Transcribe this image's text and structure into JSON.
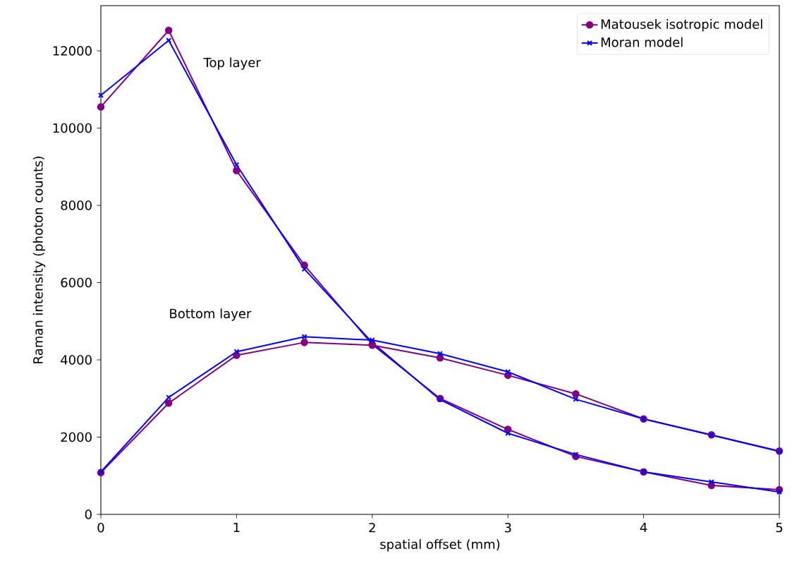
{
  "chart_data": {
    "type": "line",
    "xlabel": "spatial offset (mm)",
    "ylabel": "Raman intensity (photon counts)",
    "x": [
      0,
      0.5,
      1,
      1.5,
      2,
      2.5,
      3,
      3.5,
      4,
      4.5,
      5
    ],
    "series": [
      {
        "name": "Matousek isotropic model",
        "color": "#800080",
        "marker": "circle",
        "values": [
          10550,
          12530,
          8900,
          6450,
          4400,
          3000,
          2200,
          1500,
          1100,
          750,
          640
        ]
      },
      {
        "name": "Moran model",
        "color": "#0000ff",
        "marker": "cross",
        "values": [
          10850,
          12270,
          9050,
          6350,
          4450,
          2970,
          2100,
          1550,
          1100,
          840,
          580
        ]
      },
      {
        "color": "#800080",
        "marker": "circle",
        "values": [
          1080,
          2880,
          4120,
          4450,
          4380,
          4050,
          3600,
          3120,
          2470,
          2060,
          1640
        ]
      },
      {
        "color": "#0000ff",
        "marker": "cross",
        "values": [
          1100,
          3030,
          4210,
          4600,
          4510,
          4160,
          3690,
          2980,
          2470,
          2050,
          1630
        ]
      }
    ],
    "annotations": [
      "Top layer",
      "Bottom layer"
    ],
    "xlim": [
      0,
      5
    ],
    "ylim": [
      0,
      13170
    ],
    "xticks": [
      0,
      1,
      2,
      3,
      4,
      5
    ],
    "yticks": [
      0,
      2000,
      4000,
      6000,
      8000,
      10000,
      12000
    ],
    "legend": "top right",
    "grid": false
  }
}
